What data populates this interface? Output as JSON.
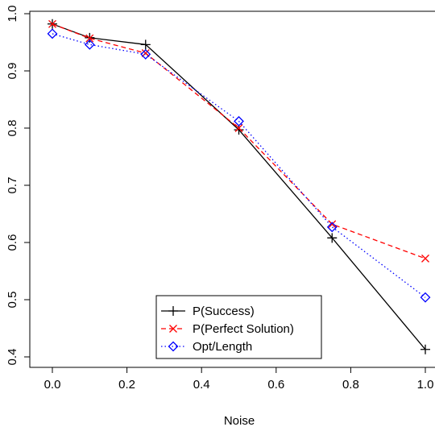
{
  "chart_data": {
    "type": "line",
    "xlabel": "Noise",
    "ylabel": "",
    "xlim": [
      0.0,
      1.0
    ],
    "ylim": [
      0.4,
      1.0
    ],
    "x": [
      0.0,
      0.1,
      0.25,
      0.5,
      0.75,
      1.0
    ],
    "xticks": [
      "0.0",
      "0.2",
      "0.4",
      "0.6",
      "0.8",
      "1.0"
    ],
    "yticks": [
      "0.4",
      "0.5",
      "0.6",
      "0.7",
      "0.8",
      "0.9",
      "1.0"
    ],
    "legend_position": "bottom-center",
    "grid": false,
    "series": [
      {
        "name": "P(Success)",
        "values": [
          0.982,
          0.958,
          0.946,
          0.797,
          0.608,
          0.413
        ],
        "color": "#000000",
        "line": "solid",
        "marker": "plus"
      },
      {
        "name": "P(Perfect Solution)",
        "values": [
          0.982,
          0.957,
          0.931,
          0.8,
          0.632,
          0.572
        ],
        "color": "#ff0000",
        "line": "dashed",
        "marker": "cross"
      },
      {
        "name": "Opt/Length",
        "values": [
          0.965,
          0.946,
          0.929,
          0.812,
          0.627,
          0.504
        ],
        "color": "#0000ff",
        "line": "dotted",
        "marker": "diamond"
      }
    ]
  }
}
